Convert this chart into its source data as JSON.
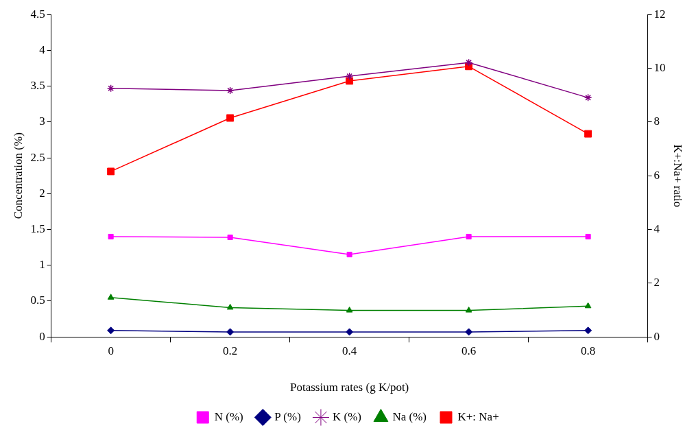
{
  "chart_data": {
    "type": "line",
    "xlabel": "Potassium rates (g K/pot)",
    "ylabel": "Concentration (%)",
    "y2label": "K+:Na+ ratio",
    "categories": [
      "0",
      "0.2",
      "0.4",
      "0.6",
      "0.8"
    ],
    "series": [
      {
        "name": "N (%)",
        "color": "#ff00ff",
        "marker": "square",
        "values": [
          1.4,
          1.39,
          1.15,
          1.4,
          1.4
        ]
      },
      {
        "name": "P (%)",
        "color": "#000080",
        "marker": "diamond",
        "values": [
          0.09,
          0.07,
          0.07,
          0.07,
          0.09
        ]
      },
      {
        "name": "K (%)",
        "color": "#800080",
        "marker": "cross",
        "values": [
          3.47,
          3.44,
          3.64,
          3.83,
          3.34
        ]
      },
      {
        "name": "Na (%)",
        "color": "#008000",
        "marker": "triangle",
        "values": [
          0.55,
          0.41,
          0.37,
          0.37,
          0.43
        ]
      },
      {
        "name": "K+: Na+",
        "color": "#ff0000",
        "marker": "square",
        "axis": "y2",
        "values": [
          6.16,
          8.15,
          9.53,
          10.07,
          7.56
        ]
      }
    ],
    "ylim": [
      0,
      4.5
    ],
    "yticks": [
      0,
      0.5,
      1,
      1.5,
      2,
      2.5,
      3,
      3.5,
      4,
      4.5
    ],
    "y2lim": [
      0,
      12
    ],
    "y2ticks": [
      0,
      2,
      4,
      6,
      8,
      10,
      12
    ],
    "legend": "bottom"
  }
}
